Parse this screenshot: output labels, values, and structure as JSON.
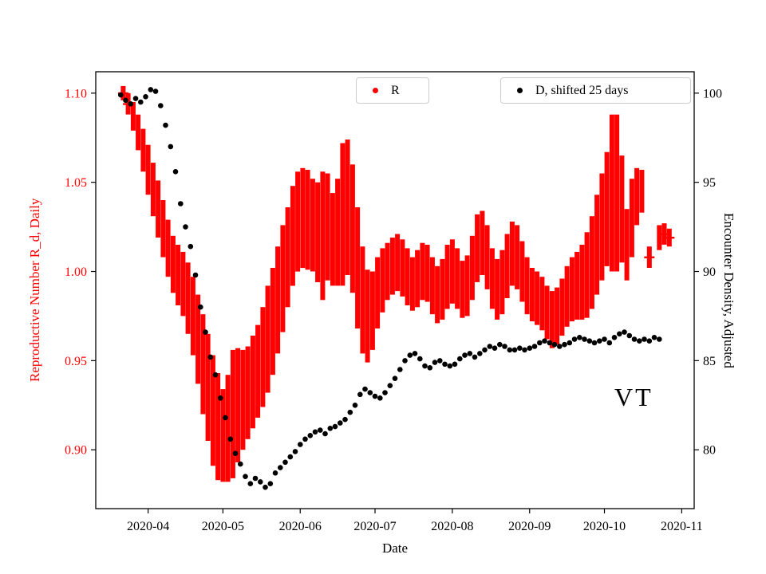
{
  "figure": {
    "xlabel": "Date",
    "ylabel_left": "Reproductive Number R_d, Daily",
    "ylabel_right": "Encounter Density, Adjusted",
    "legend_r_label": "R",
    "legend_d_label": "D, shifted 25 days",
    "annotation_text": "VT",
    "colors": {
      "r_series": "#ff0000",
      "d_series": "#000000",
      "axis": "#000000",
      "legend_border": "#cccccc"
    }
  },
  "chart_data": {
    "type": "scatter",
    "title": "",
    "xlabel": "Date",
    "ylabel_left": "Reproductive Number R_d, Daily",
    "ylabel_right": "Encounter Density, Adjusted",
    "annotation": {
      "text": "VT",
      "approx_day": 204,
      "approx_right_value": 84.3
    },
    "grid": false,
    "legend_position": "top",
    "x_epoch_date": "2020-03-20",
    "x_domain_days": [
      -9,
      231
    ],
    "x_ticks": [
      {
        "day": 12,
        "label": "2020-04"
      },
      {
        "day": 42,
        "label": "2020-05"
      },
      {
        "day": 73,
        "label": "2020-06"
      },
      {
        "day": 103,
        "label": "2020-07"
      },
      {
        "day": 134,
        "label": "2020-08"
      },
      {
        "day": 165,
        "label": "2020-09"
      },
      {
        "day": 195,
        "label": "2020-10"
      },
      {
        "day": 226,
        "label": "2020-11"
      }
    ],
    "left_axis": {
      "domain": [
        0.867,
        1.112
      ],
      "ticks": [
        0.9,
        0.95,
        1.0,
        1.05,
        1.1
      ],
      "color": "#ff0000"
    },
    "right_axis": {
      "domain": [
        76.7,
        101.2
      ],
      "ticks": [
        80,
        85,
        90,
        95,
        100
      ],
      "color": "#000000"
    },
    "series": [
      {
        "name": "R",
        "axis": "left",
        "type": "errorbar",
        "color": "#ff0000",
        "points_day_lo_hi": [
          [
            2,
            1.096,
            1.104
          ],
          [
            4,
            1.088,
            1.1
          ],
          [
            6,
            1.079,
            1.095
          ],
          [
            8,
            1.068,
            1.088
          ],
          [
            10,
            1.056,
            1.08
          ],
          [
            12,
            1.043,
            1.071
          ],
          [
            14,
            1.031,
            1.061
          ],
          [
            16,
            1.019,
            1.051
          ],
          [
            18,
            1.008,
            1.04
          ],
          [
            20,
            0.997,
            1.029
          ],
          [
            22,
            0.988,
            1.02
          ],
          [
            24,
            0.981,
            1.015
          ],
          [
            26,
            0.975,
            1.011
          ],
          [
            28,
            0.965,
            1.005
          ],
          [
            30,
            0.953,
            0.997
          ],
          [
            32,
            0.937,
            0.987
          ],
          [
            34,
            0.92,
            0.976
          ],
          [
            36,
            0.905,
            0.965
          ],
          [
            38,
            0.891,
            0.953
          ],
          [
            40,
            0.883,
            0.943
          ],
          [
            42,
            0.882,
            0.934
          ],
          [
            44,
            0.882,
            0.942
          ],
          [
            46,
            0.884,
            0.956
          ],
          [
            48,
            0.893,
            0.957
          ],
          [
            50,
            0.9,
            0.956
          ],
          [
            52,
            0.906,
            0.958
          ],
          [
            54,
            0.912,
            0.964
          ],
          [
            56,
            0.918,
            0.97
          ],
          [
            58,
            0.924,
            0.98
          ],
          [
            60,
            0.932,
            0.992
          ],
          [
            62,
            0.942,
            1.002
          ],
          [
            64,
            0.954,
            1.014
          ],
          [
            66,
            0.966,
            1.026
          ],
          [
            68,
            0.98,
            1.036
          ],
          [
            70,
            0.992,
            1.048
          ],
          [
            72,
            1.0,
            1.056
          ],
          [
            74,
            1.002,
            1.058
          ],
          [
            76,
            1.001,
            1.057
          ],
          [
            78,
            1.0,
            1.052
          ],
          [
            80,
            0.994,
            1.05
          ],
          [
            82,
            0.984,
            1.056
          ],
          [
            84,
            0.995,
            1.055
          ],
          [
            86,
            0.992,
            1.044
          ],
          [
            88,
            0.992,
            1.052
          ],
          [
            90,
            0.992,
            1.072
          ],
          [
            92,
            0.998,
            1.074
          ],
          [
            94,
            0.988,
            1.06
          ],
          [
            96,
            0.968,
            1.036
          ],
          [
            98,
            0.954,
            1.014
          ],
          [
            100,
            0.949,
            1.001
          ],
          [
            102,
            0.956,
            1.0
          ],
          [
            104,
            0.968,
            1.008
          ],
          [
            106,
            0.977,
            1.013
          ],
          [
            108,
            0.984,
            1.016
          ],
          [
            110,
            0.987,
            1.019
          ],
          [
            112,
            0.989,
            1.021
          ],
          [
            114,
            0.986,
            1.018
          ],
          [
            116,
            0.981,
            1.013
          ],
          [
            118,
            0.978,
            1.008
          ],
          [
            120,
            0.98,
            1.012
          ],
          [
            122,
            0.984,
            1.016
          ],
          [
            124,
            0.983,
            1.015
          ],
          [
            126,
            0.976,
            1.008
          ],
          [
            128,
            0.971,
            1.003
          ],
          [
            130,
            0.973,
            1.007
          ],
          [
            132,
            0.979,
            1.015
          ],
          [
            134,
            0.982,
            1.018
          ],
          [
            136,
            0.979,
            1.013
          ],
          [
            138,
            0.974,
            1.006
          ],
          [
            140,
            0.975,
            1.009
          ],
          [
            142,
            0.984,
            1.02
          ],
          [
            144,
            0.994,
            1.032
          ],
          [
            146,
            0.998,
            1.034
          ],
          [
            148,
            0.99,
            1.026
          ],
          [
            150,
            0.979,
            1.013
          ],
          [
            152,
            0.973,
            1.007
          ],
          [
            154,
            0.976,
            1.012
          ],
          [
            156,
            0.985,
            1.021
          ],
          [
            158,
            0.992,
            1.028
          ],
          [
            160,
            0.99,
            1.026
          ],
          [
            162,
            0.983,
            1.017
          ],
          [
            164,
            0.976,
            1.008
          ],
          [
            166,
            0.972,
            1.002
          ],
          [
            168,
            0.97,
            1.0
          ],
          [
            170,
            0.967,
            0.997
          ],
          [
            172,
            0.962,
            0.992
          ],
          [
            174,
            0.957,
            0.989
          ],
          [
            176,
            0.959,
            0.991
          ],
          [
            178,
            0.964,
            0.996
          ],
          [
            180,
            0.969,
            1.003
          ],
          [
            182,
            0.972,
            1.008
          ],
          [
            184,
            0.973,
            1.011
          ],
          [
            186,
            0.973,
            1.015
          ],
          [
            188,
            0.974,
            1.022
          ],
          [
            190,
            0.979,
            1.031
          ],
          [
            192,
            0.987,
            1.043
          ],
          [
            194,
            0.995,
            1.055
          ],
          [
            196,
            1.003,
            1.067
          ],
          [
            198,
            1.0,
            1.088
          ],
          [
            200,
            1.0,
            1.088
          ],
          [
            202,
            1.005,
            1.065
          ],
          [
            204,
            0.995,
            1.035
          ],
          [
            206,
            1.008,
            1.052
          ],
          [
            208,
            1.026,
            1.058
          ],
          [
            210,
            1.033,
            1.057
          ],
          [
            213,
            1.002,
            1.014
          ],
          [
            217,
            1.012,
            1.026
          ],
          [
            219,
            1.015,
            1.027
          ],
          [
            221,
            1.014,
            1.024
          ]
        ]
      },
      {
        "name": "D, shifted 25 days",
        "axis": "right",
        "type": "scatter-dots",
        "color": "#000000",
        "points_day_value": [
          [
            1,
            99.9
          ],
          [
            3,
            99.6
          ],
          [
            5,
            99.4
          ],
          [
            7,
            99.7
          ],
          [
            9,
            99.5
          ],
          [
            11,
            99.8
          ],
          [
            13,
            100.2
          ],
          [
            15,
            100.1
          ],
          [
            17,
            99.3
          ],
          [
            19,
            98.2
          ],
          [
            21,
            97.0
          ],
          [
            23,
            95.6
          ],
          [
            25,
            93.8
          ],
          [
            27,
            92.5
          ],
          [
            29,
            91.4
          ],
          [
            31,
            89.8
          ],
          [
            33,
            88.0
          ],
          [
            35,
            86.6
          ],
          [
            37,
            85.2
          ],
          [
            39,
            84.2
          ],
          [
            41,
            82.9
          ],
          [
            43,
            81.8
          ],
          [
            45,
            80.6
          ],
          [
            47,
            79.8
          ],
          [
            49,
            79.2
          ],
          [
            51,
            78.5
          ],
          [
            53,
            78.1
          ],
          [
            55,
            78.4
          ],
          [
            57,
            78.2
          ],
          [
            59,
            77.9
          ],
          [
            61,
            78.1
          ],
          [
            63,
            78.7
          ],
          [
            65,
            79.0
          ],
          [
            67,
            79.3
          ],
          [
            69,
            79.6
          ],
          [
            71,
            79.9
          ],
          [
            73,
            80.3
          ],
          [
            75,
            80.6
          ],
          [
            77,
            80.8
          ],
          [
            79,
            81.0
          ],
          [
            81,
            81.1
          ],
          [
            83,
            80.9
          ],
          [
            85,
            81.2
          ],
          [
            87,
            81.3
          ],
          [
            89,
            81.5
          ],
          [
            91,
            81.7
          ],
          [
            93,
            82.1
          ],
          [
            95,
            82.5
          ],
          [
            97,
            83.1
          ],
          [
            99,
            83.4
          ],
          [
            101,
            83.2
          ],
          [
            103,
            83.0
          ],
          [
            105,
            82.9
          ],
          [
            107,
            83.2
          ],
          [
            109,
            83.6
          ],
          [
            111,
            84.0
          ],
          [
            113,
            84.5
          ],
          [
            115,
            85.0
          ],
          [
            117,
            85.3
          ],
          [
            119,
            85.4
          ],
          [
            121,
            85.1
          ],
          [
            123,
            84.7
          ],
          [
            125,
            84.6
          ],
          [
            127,
            84.9
          ],
          [
            129,
            85.0
          ],
          [
            131,
            84.8
          ],
          [
            133,
            84.7
          ],
          [
            135,
            84.8
          ],
          [
            137,
            85.1
          ],
          [
            139,
            85.3
          ],
          [
            141,
            85.4
          ],
          [
            143,
            85.2
          ],
          [
            145,
            85.4
          ],
          [
            147,
            85.6
          ],
          [
            149,
            85.8
          ],
          [
            151,
            85.7
          ],
          [
            153,
            85.9
          ],
          [
            155,
            85.8
          ],
          [
            157,
            85.6
          ],
          [
            159,
            85.6
          ],
          [
            161,
            85.7
          ],
          [
            163,
            85.6
          ],
          [
            165,
            85.7
          ],
          [
            167,
            85.8
          ],
          [
            169,
            86.0
          ],
          [
            171,
            86.1
          ],
          [
            173,
            86.0
          ],
          [
            175,
            85.9
          ],
          [
            177,
            85.8
          ],
          [
            179,
            85.9
          ],
          [
            181,
            86.0
          ],
          [
            183,
            86.2
          ],
          [
            185,
            86.3
          ],
          [
            187,
            86.2
          ],
          [
            189,
            86.1
          ],
          [
            191,
            86.0
          ],
          [
            193,
            86.1
          ],
          [
            195,
            86.2
          ],
          [
            197,
            86.0
          ],
          [
            199,
            86.3
          ],
          [
            201,
            86.5
          ],
          [
            203,
            86.6
          ],
          [
            205,
            86.4
          ],
          [
            207,
            86.2
          ],
          [
            209,
            86.1
          ],
          [
            211,
            86.2
          ],
          [
            213,
            86.1
          ],
          [
            215,
            86.3
          ],
          [
            217,
            86.2
          ]
        ]
      }
    ]
  }
}
